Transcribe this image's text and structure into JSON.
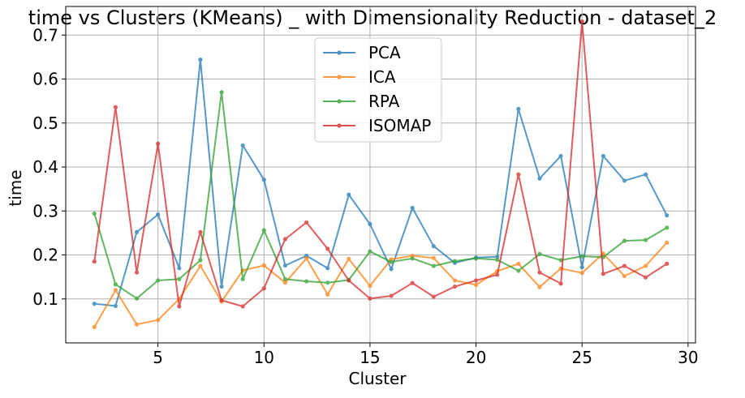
{
  "chart_data": {
    "type": "line",
    "title": "time vs Clusters (KMeans) _ with Dimensionality Reduction - dataset_2",
    "xlabel": "Cluster",
    "ylabel": "time",
    "xlim": [
      0.65,
      30.35
    ],
    "ylim": [
      0.0,
      0.765
    ],
    "xticks": [
      5,
      10,
      15,
      20,
      25,
      30
    ],
    "yticks": [
      0.1,
      0.2,
      0.3,
      0.4,
      0.5,
      0.6,
      0.7
    ],
    "xtick_labels": [
      "5",
      "10",
      "15",
      "20",
      "25",
      "30"
    ],
    "ytick_labels": [
      "0.1",
      "0.2",
      "0.3",
      "0.4",
      "0.5",
      "0.6",
      "0.7"
    ],
    "grid": true,
    "legend_position": "top-center",
    "x": [
      2,
      3,
      4,
      5,
      6,
      7,
      8,
      9,
      10,
      11,
      12,
      13,
      14,
      15,
      16,
      17,
      18,
      19,
      20,
      21,
      22,
      23,
      24,
      25,
      26,
      27,
      28,
      29
    ],
    "series": [
      {
        "name": "PCA",
        "color": "#1f77b4",
        "values": [
          0.089,
          0.084,
          0.252,
          0.292,
          0.17,
          0.644,
          0.128,
          0.449,
          0.371,
          0.176,
          0.198,
          0.17,
          0.337,
          0.27,
          0.168,
          0.307,
          0.22,
          0.182,
          0.194,
          0.196,
          0.532,
          0.374,
          0.425,
          0.172,
          0.425,
          0.369,
          0.383,
          0.29
        ]
      },
      {
        "name": "ICA",
        "color": "#ff7f0e",
        "values": [
          0.036,
          0.12,
          0.042,
          0.052,
          0.1,
          0.175,
          0.094,
          0.165,
          0.176,
          0.137,
          0.192,
          0.11,
          0.191,
          0.13,
          0.19,
          0.198,
          0.193,
          0.142,
          0.132,
          0.163,
          0.18,
          0.127,
          0.169,
          0.159,
          0.203,
          0.152,
          0.175,
          0.228
        ]
      },
      {
        "name": "RPA",
        "color": "#2ca02c",
        "values": [
          0.294,
          0.133,
          0.101,
          0.142,
          0.145,
          0.188,
          0.57,
          0.145,
          0.256,
          0.145,
          0.14,
          0.137,
          0.143,
          0.208,
          0.184,
          0.192,
          0.175,
          0.186,
          0.192,
          0.189,
          0.164,
          0.202,
          0.188,
          0.197,
          0.195,
          0.232,
          0.234,
          0.262
        ]
      },
      {
        "name": "ISOMAP",
        "color": "#d62728",
        "values": [
          0.185,
          0.536,
          0.16,
          0.453,
          0.083,
          0.252,
          0.097,
          0.083,
          0.124,
          0.236,
          0.274,
          0.214,
          0.142,
          0.101,
          0.107,
          0.136,
          0.105,
          0.128,
          0.142,
          0.155,
          0.383,
          0.16,
          0.135,
          0.731,
          0.157,
          0.175,
          0.149,
          0.18
        ]
      }
    ]
  }
}
